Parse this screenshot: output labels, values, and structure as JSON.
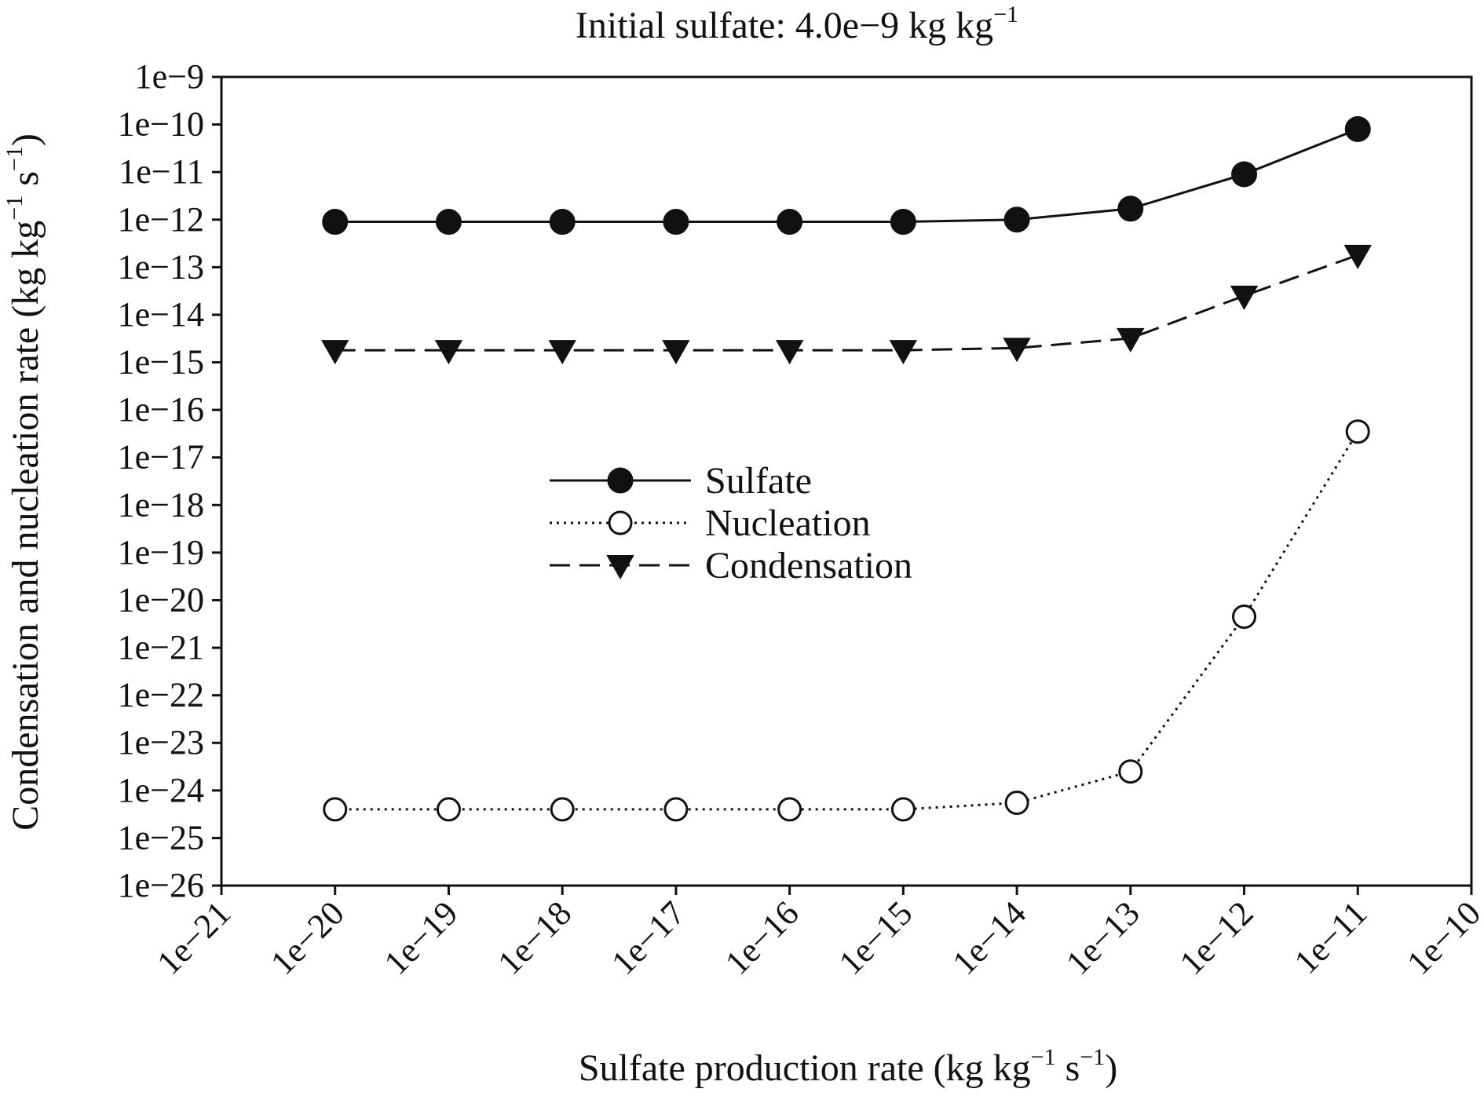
{
  "chart_data": {
    "type": "line",
    "title_parts": [
      "Initial sulfate: 4.0e−9 kg kg",
      "−1"
    ],
    "xlabel_parts": [
      "Sulfate production rate (kg kg",
      "−1",
      " s",
      "−1",
      ")"
    ],
    "ylabel_parts": [
      "Condensation and nucleation rate (kg kg",
      "−1",
      " s",
      "−1",
      ")"
    ],
    "x_scale": "log",
    "y_scale": "log",
    "xlim": [
      1e-21,
      1e-10
    ],
    "ylim": [
      1e-26,
      1e-09
    ],
    "x_tick_labels": [
      "1e−21",
      "1e−20",
      "1e−19",
      "1e−18",
      "1e−17",
      "1e−16",
      "1e−15",
      "1e−14",
      "1e−13",
      "1e−12",
      "1e−11",
      "1e−10"
    ],
    "y_tick_labels": [
      "1e−9",
      "1e−10",
      "1e−11",
      "1e−12",
      "1e−13",
      "1e−14",
      "1e−15",
      "1e−16",
      "1e−17",
      "1e−18",
      "1e−19",
      "1e−20",
      "1e−21",
      "1e−22",
      "1e−23",
      "1e−24",
      "1e−25",
      "1e−26"
    ],
    "grid": false,
    "legend_position": "center",
    "x": [
      1e-20,
      1e-19,
      1e-18,
      1e-17,
      1e-16,
      1e-15,
      1e-14,
      1e-13,
      1e-12,
      1e-11
    ],
    "series": [
      {
        "name": "Sulfate",
        "marker": "filled-circle",
        "line_style": "solid",
        "color": "#111111",
        "values": [
          9e-13,
          9e-13,
          9e-13,
          9e-13,
          9e-13,
          9e-13,
          1e-12,
          1.7e-12,
          9e-12,
          8e-11
        ]
      },
      {
        "name": "Nucleation",
        "marker": "open-circle",
        "line_style": "dotted",
        "color": "#111111",
        "values": [
          4e-25,
          4e-25,
          4e-25,
          4e-25,
          4e-25,
          4e-25,
          5.5e-25,
          2.5e-24,
          4.5e-21,
          3.5e-17
        ]
      },
      {
        "name": "Condensation",
        "marker": "filled-triangle-down",
        "line_style": "dashed",
        "color": "#111111",
        "values": [
          1.8e-15,
          1.8e-15,
          1.8e-15,
          1.8e-15,
          1.8e-15,
          1.8e-15,
          2e-15,
          3.2e-15,
          2.5e-14,
          1.8e-13
        ]
      }
    ]
  }
}
